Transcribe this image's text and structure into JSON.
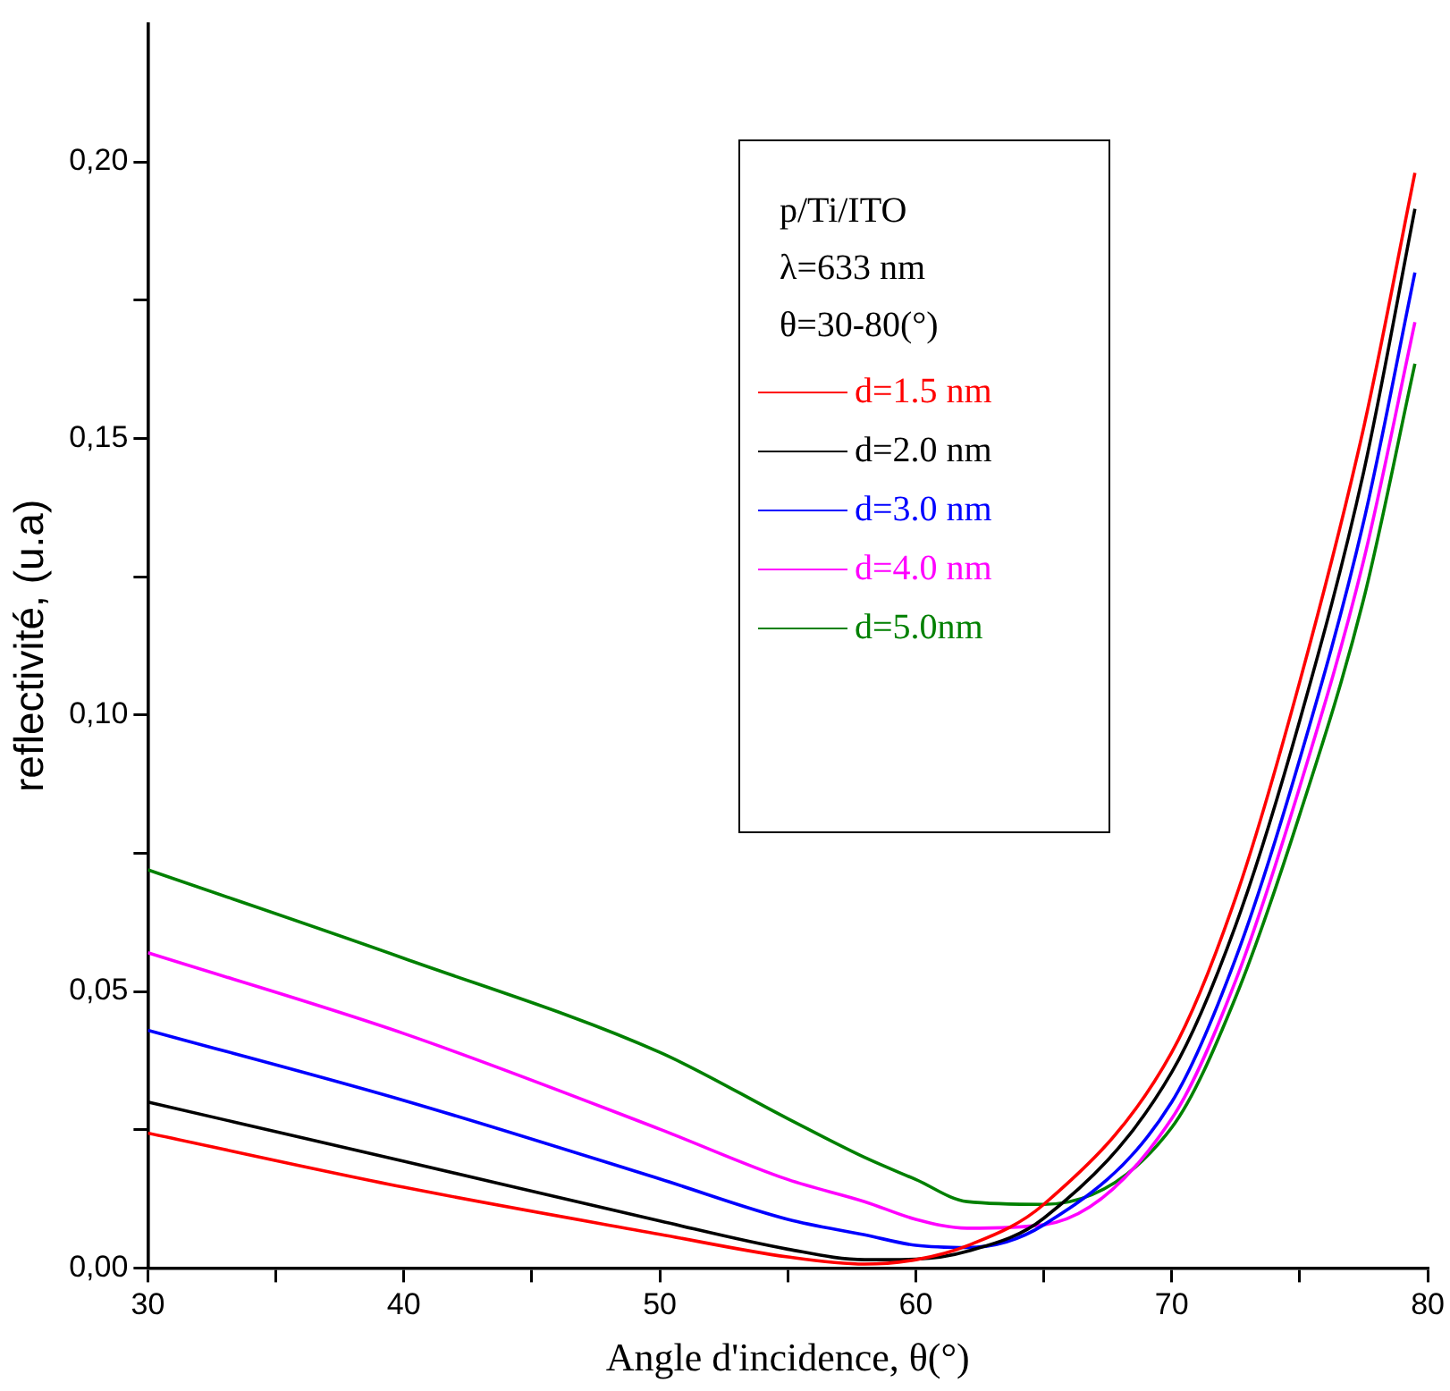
{
  "chart_data": {
    "type": "line",
    "xlabel": "Angle d'incidence, θ(°)",
    "ylabel": "reflectivité, (u.a)",
    "legend_title": "p/Ti/ITO\nλ=633 nm\nθ=30-80(°)",
    "x": [
      30,
      40,
      50,
      55,
      58,
      60,
      62,
      65,
      70,
      72.5,
      75,
      77.5,
      79.5
    ],
    "series": [
      {
        "name": "d=1.5 nm",
        "color": "#ff0000",
        "values": [
          0.0244,
          0.0146,
          0.0061,
          0.002,
          0.0007,
          0.0015,
          0.004,
          0.0115,
          0.039,
          0.067,
          0.106,
          0.152,
          0.198
        ]
      },
      {
        "name": "d=2.0 nm",
        "color": "#000000",
        "values": [
          0.03,
          0.0193,
          0.0085,
          0.0034,
          0.0015,
          0.0016,
          0.003,
          0.009,
          0.0354,
          0.062,
          0.099,
          0.144,
          0.1915
        ]
      },
      {
        "name": "d=3.0 nm",
        "color": "#0000ff",
        "values": [
          0.043,
          0.0303,
          0.0161,
          0.0088,
          0.006,
          0.0041,
          0.0037,
          0.0078,
          0.03,
          0.056,
          0.092,
          0.135,
          0.18
        ]
      },
      {
        "name": "d=4.0 nm",
        "color": "#ff00ff",
        "values": [
          0.057,
          0.0424,
          0.0251,
          0.016,
          0.012,
          0.0088,
          0.0072,
          0.0078,
          0.027,
          0.052,
          0.087,
          0.128,
          0.171
        ]
      },
      {
        "name": "d=5.0nm",
        "color": "#008000",
        "values": [
          0.072,
          0.056,
          0.039,
          0.027,
          0.02,
          0.016,
          0.012,
          0.0115,
          0.0254,
          0.049,
          0.082,
          0.121,
          0.1635
        ]
      }
    ],
    "xlim": [
      30,
      80
    ],
    "ylim": [
      0,
      0.225
    ],
    "xticks": [
      30,
      {
        "value": 35,
        "label": null
      },
      40,
      {
        "value": 45,
        "label": null
      },
      50,
      {
        "value": 55,
        "label": null
      },
      60,
      {
        "value": 65,
        "label": null
      },
      70,
      {
        "value": 75,
        "label": null
      },
      80
    ],
    "yticks": [
      {
        "value": 0,
        "label": "0,00"
      },
      {
        "value": 0.025,
        "label": null
      },
      {
        "value": 0.05,
        "label": "0,05"
      },
      {
        "value": 0.075,
        "label": null
      },
      {
        "value": 0.1,
        "label": "0,10"
      },
      {
        "value": 0.125,
        "label": null
      },
      {
        "value": 0.15,
        "label": "0,15"
      },
      {
        "value": 0.175,
        "label": null
      },
      {
        "value": 0.2,
        "label": "0,20"
      }
    ],
    "grid": false,
    "legend": "top right",
    "marker": "none",
    "line_style": "solid"
  }
}
